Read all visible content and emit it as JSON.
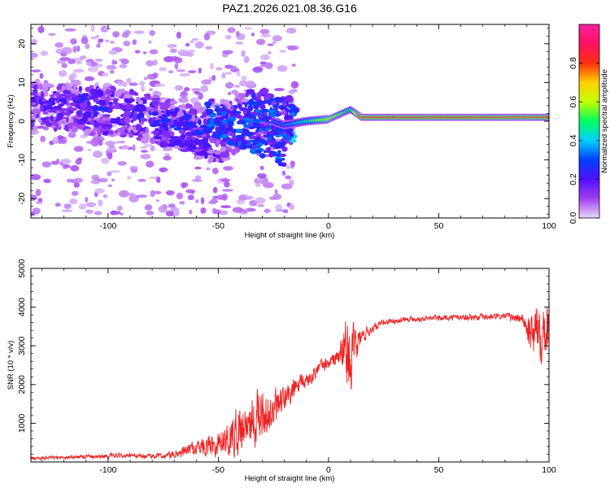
{
  "title": "PAZ1.2026.021.08.36.G16",
  "chart_data": [
    {
      "type": "heatmap",
      "xlabel": "Height of straight line (km)",
      "ylabel": "Frequency (Hz)",
      "xlim": [
        -135,
        100
      ],
      "ylim": [
        -25,
        25
      ],
      "xticks": [
        -100,
        -50,
        0,
        50,
        100
      ],
      "yticks": [
        -20,
        -10,
        0,
        10,
        20
      ],
      "colorbar": {
        "label": "Normalized spectral amplitude",
        "range": [
          0,
          1
        ],
        "ticks": [
          0.0,
          0.2,
          0.4,
          0.6,
          0.8
        ],
        "colormap": [
          "#e8d8f8",
          "#a040f0",
          "#5010ff",
          "#0040ff",
          "#00d0ff",
          "#00ff60",
          "#c0ff00",
          "#ffd000",
          "#ff3010",
          "#ff1060",
          "#ff20a0"
        ]
      },
      "ridge": [
        {
          "x": -130,
          "freq": 4,
          "amp": 0.2
        },
        {
          "x": -110,
          "freq": 3,
          "amp": 0.25
        },
        {
          "x": -90,
          "freq": 2,
          "amp": 0.22
        },
        {
          "x": -70,
          "freq": -1,
          "amp": 0.25
        },
        {
          "x": -50,
          "freq": -4,
          "amp": 0.25
        },
        {
          "x": -35,
          "freq": 2,
          "amp": 0.3
        },
        {
          "x": -20,
          "freq": -1,
          "amp": 0.35
        },
        {
          "x": -10,
          "freq": 0,
          "amp": 0.5
        },
        {
          "x": 0,
          "freq": 0.5,
          "amp": 0.7
        },
        {
          "x": 10,
          "freq": 3,
          "amp": 0.5
        },
        {
          "x": 15,
          "freq": 1,
          "amp": 0.9
        },
        {
          "x": 50,
          "freq": 1,
          "amp": 0.92
        },
        {
          "x": 80,
          "freq": 1,
          "amp": 0.88
        },
        {
          "x": 100,
          "freq": 1,
          "amp": 0.85
        }
      ]
    },
    {
      "type": "line",
      "xlabel": "Height of straight line (km)",
      "ylabel": "SNR (10 * v/v)",
      "xlim": [
        -135,
        100
      ],
      "ylim": [
        0,
        5000
      ],
      "xticks": [
        -100,
        -50,
        0,
        50,
        100
      ],
      "yticks": [
        1000,
        2000,
        3000,
        4000,
        5000
      ],
      "series": [
        {
          "name": "SNR",
          "color": "#ee2222",
          "x": [
            -135,
            -125,
            -115,
            -105,
            -95,
            -85,
            -75,
            -70,
            -65,
            -60,
            -55,
            -50,
            -45,
            -40,
            -35,
            -30,
            -25,
            -20,
            -15,
            -10,
            -5,
            0,
            5,
            8,
            10,
            12,
            15,
            20,
            25,
            30,
            35,
            40,
            50,
            60,
            70,
            80,
            88,
            92,
            96,
            100
          ],
          "values": [
            100,
            110,
            130,
            150,
            160,
            150,
            150,
            180,
            280,
            380,
            450,
            500,
            650,
            850,
            1100,
            1200,
            1300,
            1600,
            1900,
            2100,
            2400,
            2550,
            2750,
            2900,
            2600,
            2900,
            3250,
            3450,
            3600,
            3650,
            3700,
            3700,
            3720,
            3740,
            3740,
            3760,
            3700,
            3300,
            3500,
            3550
          ],
          "noise": [
            60,
            60,
            70,
            80,
            80,
            80,
            100,
            150,
            200,
            300,
            400,
            500,
            700,
            900,
            1000,
            900,
            700,
            500,
            400,
            300,
            250,
            250,
            350,
            1300,
            1200,
            700,
            300,
            150,
            120,
            100,
            100,
            100,
            100,
            110,
            110,
            120,
            200,
            800,
            1200,
            1000
          ]
        }
      ]
    }
  ]
}
